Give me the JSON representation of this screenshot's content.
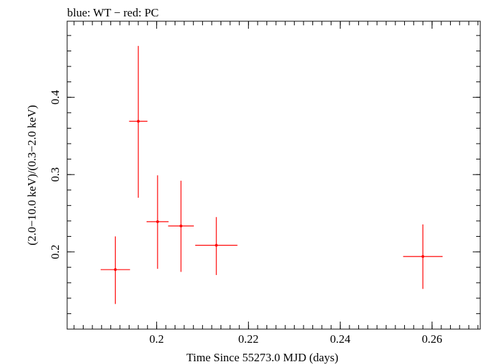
{
  "chart_data": {
    "type": "scatter",
    "title": "blue: WT − red: PC",
    "xlabel": "Time Since 55273.0 MJD (days)",
    "ylabel": "(2.0−10.0 keV)/(0.3−2.0 keV)",
    "xlim": [
      0.1805,
      0.2705
    ],
    "ylim": [
      0.1,
      0.4985
    ],
    "x_ticks": [
      0.2,
      0.22,
      0.24,
      0.26
    ],
    "x_tick_labels": [
      "0.2",
      "0.22",
      "0.24",
      "0.26"
    ],
    "y_ticks": [
      0.2,
      0.3,
      0.4
    ],
    "y_tick_labels": [
      "0.2",
      "0.3",
      "0.4"
    ],
    "x_minor_step": 0.002,
    "y_minor_step": 0.02,
    "grid": false,
    "legend": "none",
    "series": [
      {
        "color": "#ff0000",
        "points": [
          {
            "x": 0.191,
            "xlo": 0.1878,
            "xhi": 0.1942,
            "y": 0.177,
            "ylo": 0.1325,
            "yhi": 0.22
          },
          {
            "x": 0.196,
            "xlo": 0.194,
            "xhi": 0.198,
            "y": 0.369,
            "ylo": 0.27,
            "yhi": 0.4665
          },
          {
            "x": 0.2002,
            "xlo": 0.1978,
            "xhi": 0.2026,
            "y": 0.239,
            "ylo": 0.178,
            "yhi": 0.299
          },
          {
            "x": 0.2053,
            "xlo": 0.2025,
            "xhi": 0.2081,
            "y": 0.2335,
            "ylo": 0.174,
            "yhi": 0.292
          },
          {
            "x": 0.213,
            "xlo": 0.2084,
            "xhi": 0.2176,
            "y": 0.2085,
            "ylo": 0.17,
            "yhi": 0.245
          },
          {
            "x": 0.258,
            "xlo": 0.2537,
            "xhi": 0.2623,
            "y": 0.194,
            "ylo": 0.152,
            "yhi": 0.2355
          }
        ]
      }
    ]
  }
}
